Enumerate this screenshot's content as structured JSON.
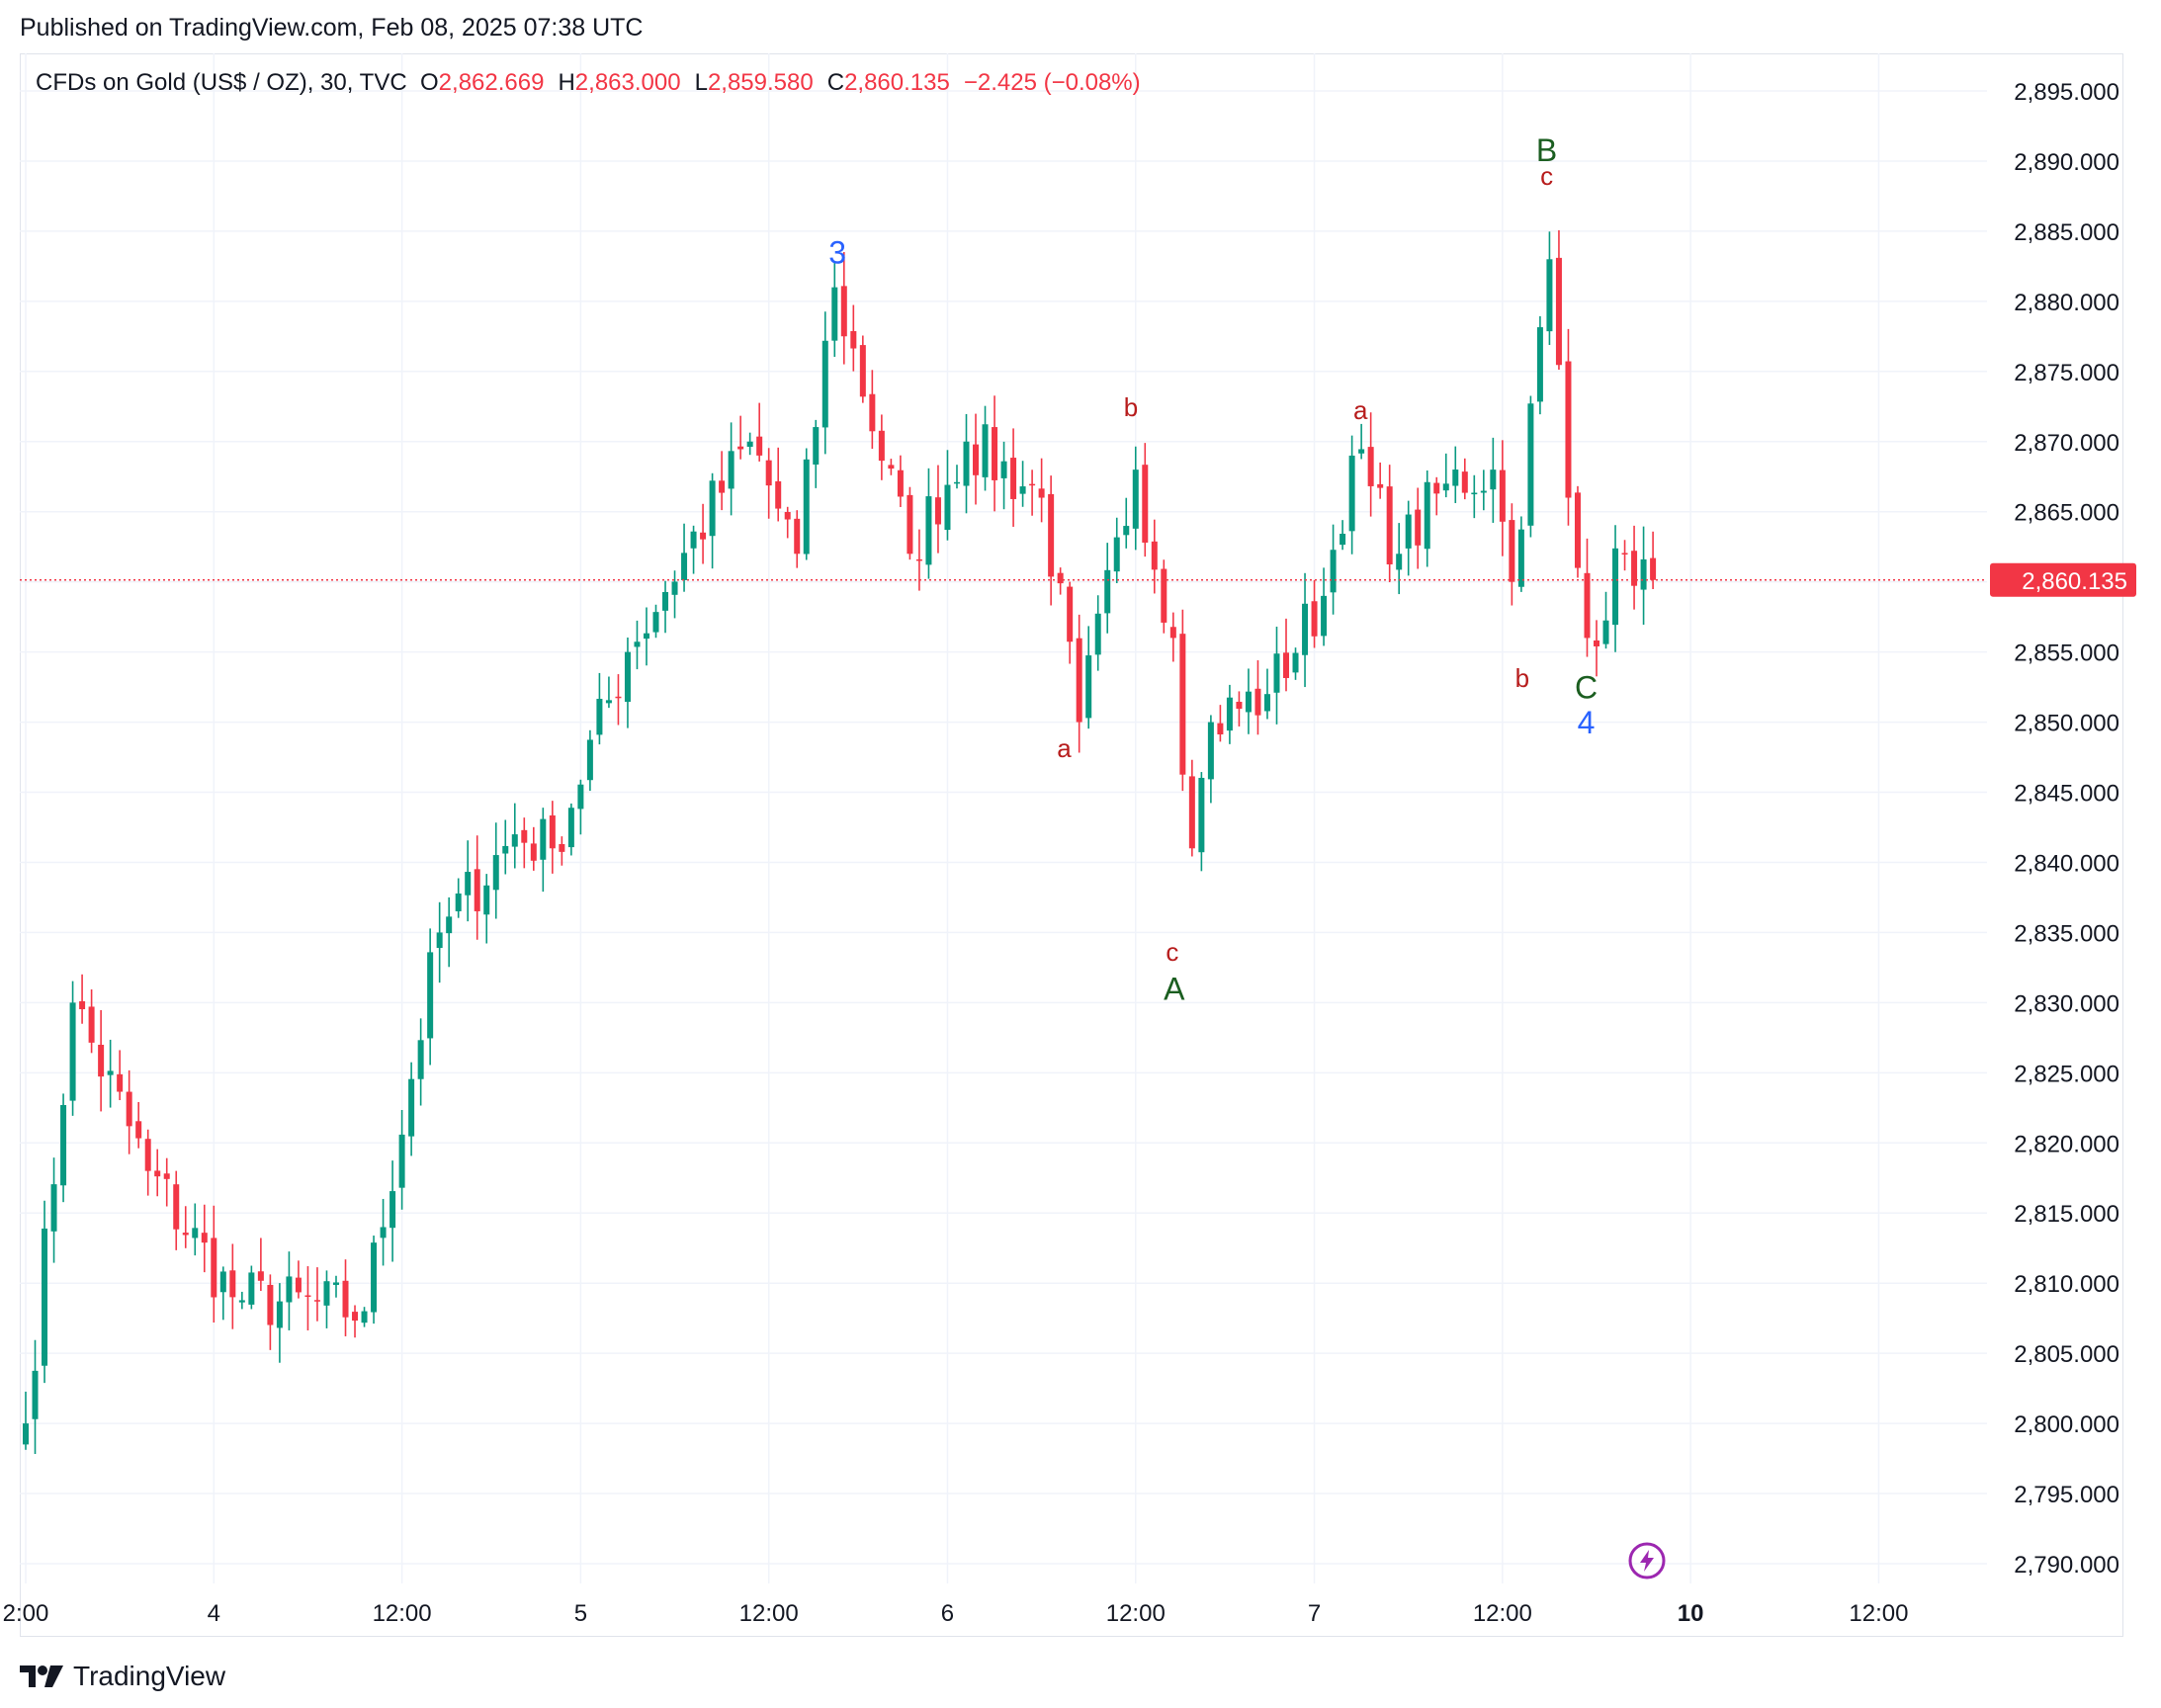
{
  "header": {
    "published": "Published on TradingView.com, Feb 08, 2025 07:38 UTC"
  },
  "legend": {
    "symbol": "CFDs on Gold (US$ / OZ), 30, TVC",
    "o_label": "O",
    "o_value": "2,862.669",
    "h_label": "H",
    "h_value": "2,863.000",
    "l_label": "L",
    "l_value": "2,859.580",
    "c_label": "C",
    "c_value": "2,860.135",
    "change": "−2.425 (−0.08%)"
  },
  "footer": {
    "brand": "TradingView"
  },
  "icons": {
    "logo": "tradingview-logo-icon",
    "bolt": "lightning-bolt-icon"
  },
  "colors": {
    "up": "#089981",
    "down": "#f23645",
    "wave_blue": "#2962ff",
    "wave_green": "#1b5e20",
    "wave_red": "#b71c1c",
    "last_price": "#f23645"
  },
  "chart_data": {
    "type": "candlestick",
    "symbol": "CFDs on Gold (US$ / OZ)",
    "interval": "30",
    "ylim": [
      2790,
      2895
    ],
    "y_ticks": [
      "2,790.000",
      "2,795.000",
      "2,800.000",
      "2,805.000",
      "2,810.000",
      "2,815.000",
      "2,820.000",
      "2,825.000",
      "2,830.000",
      "2,835.000",
      "2,840.000",
      "2,845.000",
      "2,850.000",
      "2,855.000",
      "2,860.000",
      "2,865.000",
      "2,870.000",
      "2,875.000",
      "2,880.000",
      "2,885.000",
      "2,890.000",
      "2,895.000"
    ],
    "x_ticks": [
      {
        "label": "2:00",
        "t": 0
      },
      {
        "label": "4",
        "t": 20
      },
      {
        "label": "12:00",
        "t": 40
      },
      {
        "label": "5",
        "t": 59
      },
      {
        "label": "12:00",
        "t": 79
      },
      {
        "label": "6",
        "t": 98
      },
      {
        "label": "12:00",
        "t": 118
      },
      {
        "label": "7",
        "t": 137
      },
      {
        "label": "12:00",
        "t": 157
      },
      {
        "label": "10",
        "t": 177,
        "bold": true
      },
      {
        "label": "12:00",
        "t": 197
      }
    ],
    "last_price": "2,860.135",
    "last_price_value": 2860.135,
    "key_points": [
      {
        "t": 0,
        "price": 2800
      },
      {
        "t": 5,
        "price": 2830
      },
      {
        "t": 13,
        "price": 2818
      },
      {
        "t": 22,
        "price": 2809
      },
      {
        "t": 36,
        "price": 2808
      },
      {
        "t": 44,
        "price": 2835
      },
      {
        "t": 52,
        "price": 2842
      },
      {
        "t": 56,
        "price": 2841
      },
      {
        "t": 64,
        "price": 2855
      },
      {
        "t": 77,
        "price": 2870
      },
      {
        "t": 82,
        "price": 2862
      },
      {
        "t": 86,
        "price": 2881
      },
      {
        "t": 94,
        "price": 2862
      },
      {
        "t": 100,
        "price": 2870
      },
      {
        "t": 108,
        "price": 2866
      },
      {
        "t": 112,
        "price": 2850
      },
      {
        "t": 118,
        "price": 2868
      },
      {
        "t": 122,
        "price": 2856
      },
      {
        "t": 124,
        "price": 2841
      },
      {
        "t": 126,
        "price": 2850
      },
      {
        "t": 132,
        "price": 2852
      },
      {
        "t": 138,
        "price": 2859
      },
      {
        "t": 141,
        "price": 2869
      },
      {
        "t": 146,
        "price": 2862
      },
      {
        "t": 151,
        "price": 2867
      },
      {
        "t": 156,
        "price": 2868
      },
      {
        "t": 158,
        "price": 2860
      },
      {
        "t": 162,
        "price": 2883
      },
      {
        "t": 164,
        "price": 2866
      },
      {
        "t": 166,
        "price": 2856
      },
      {
        "t": 170,
        "price": 2862
      },
      {
        "t": 173,
        "price": 2860.135
      }
    ],
    "wave_labels": [
      {
        "text": "3",
        "t": 86.3,
        "price": 2882.7,
        "color": "blue",
        "size": "big"
      },
      {
        "text": "a",
        "t": 110.4,
        "price": 2847.5,
        "color": "red",
        "size": "small"
      },
      {
        "text": "b",
        "t": 117.5,
        "price": 2871.8,
        "color": "red",
        "size": "small"
      },
      {
        "text": "c",
        "t": 121.9,
        "price": 2833.0,
        "color": "red",
        "size": "small"
      },
      {
        "text": "A",
        "t": 122.1,
        "price": 2830.2,
        "color": "green",
        "size": "big"
      },
      {
        "text": "a",
        "t": 141.9,
        "price": 2871.6,
        "color": "red",
        "size": "small"
      },
      {
        "text": "B",
        "t": 161.7,
        "price": 2890.0,
        "color": "green",
        "size": "big"
      },
      {
        "text": "c",
        "t": 161.7,
        "price": 2888.3,
        "color": "red",
        "size": "small"
      },
      {
        "text": "b",
        "t": 159.1,
        "price": 2852.5,
        "color": "red",
        "size": "small"
      },
      {
        "text": "C",
        "t": 165.9,
        "price": 2851.7,
        "color": "green",
        "size": "big"
      },
      {
        "text": "4",
        "t": 165.9,
        "price": 2849.2,
        "color": "blue",
        "size": "big"
      }
    ]
  }
}
